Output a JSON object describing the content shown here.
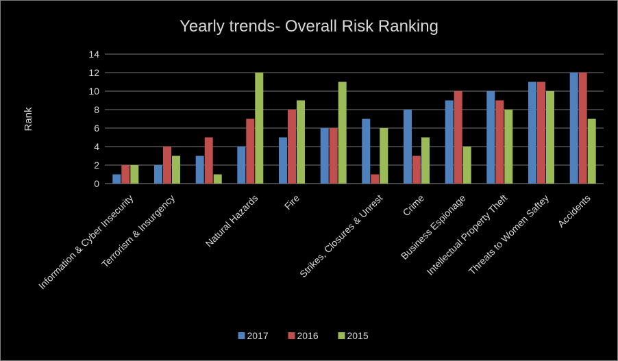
{
  "chart_data": {
    "type": "bar",
    "title": "Yearly trends- Overall Risk Ranking",
    "xlabel": "",
    "ylabel": "Rank",
    "ylim": [
      0,
      14
    ],
    "yticks": [
      0,
      2,
      4,
      6,
      8,
      10,
      12,
      14
    ],
    "grid": true,
    "legend_position": "bottom",
    "categories": [
      "Information & Cyber Insecurity",
      "Terrorism & Insurgency",
      "",
      "Natural Hazards",
      "Fire",
      "",
      "Strikes, Closures & Unrest",
      "Crime",
      "Business Espionage",
      "Intellectual Property Theft",
      "Threats to Women Saftey",
      "Accidents"
    ],
    "series": [
      {
        "name": "2017",
        "color": "#4f81bd",
        "values": [
          1,
          2,
          3,
          4,
          5,
          6,
          7,
          8,
          9,
          10,
          11,
          12
        ]
      },
      {
        "name": "2016",
        "color": "#c0504d",
        "values": [
          2,
          4,
          5,
          7,
          8,
          6,
          1,
          3,
          10,
          9,
          11,
          12
        ]
      },
      {
        "name": "2015",
        "color": "#9bbb59",
        "values": [
          2,
          3,
          1,
          12,
          9,
          11,
          6,
          5,
          4,
          8,
          10,
          7
        ]
      }
    ]
  }
}
